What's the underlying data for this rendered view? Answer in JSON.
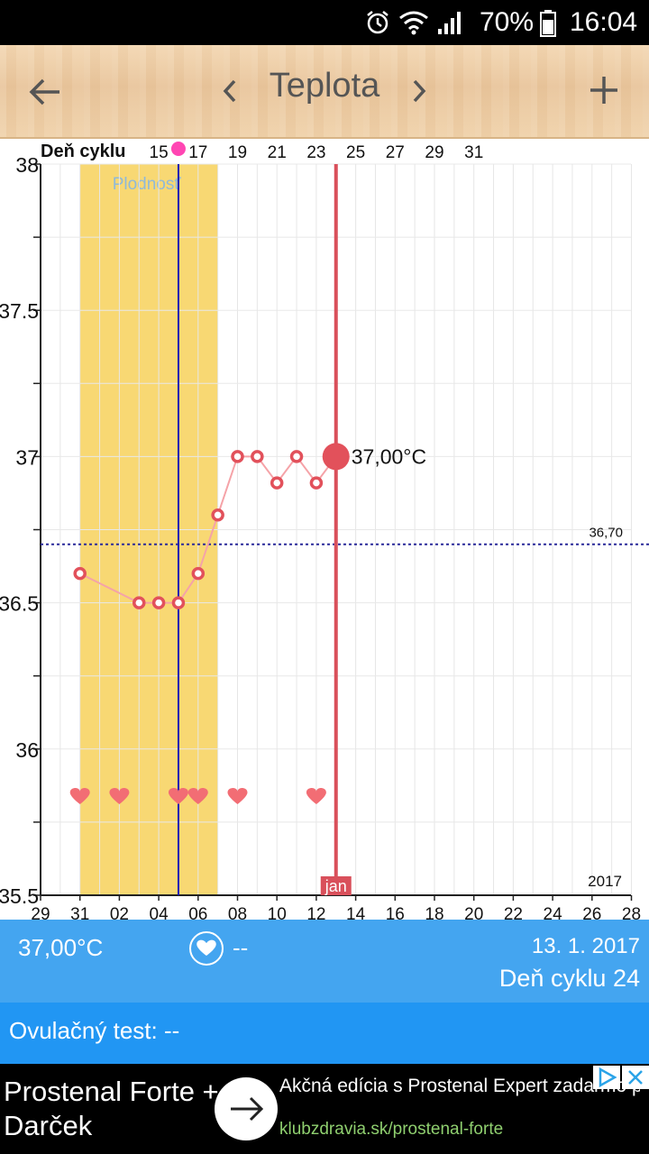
{
  "status_bar": {
    "icons": [
      "alarm-icon",
      "wifi-icon",
      "signal-icon",
      "battery-icon"
    ],
    "battery": "70%",
    "time": "16:04"
  },
  "toolbar": {
    "title": "Teplota",
    "back_icon": "arrow-left-icon",
    "prev_icon": "chevron-left-icon",
    "next_icon": "chevron-right-icon",
    "add_icon": "plus-icon"
  },
  "chart_data": {
    "type": "line",
    "cycle_axis_label": "Deň cyklu",
    "cycle_ticks": [
      "15",
      "17",
      "19",
      "21",
      "23",
      "25",
      "27",
      "29",
      "31"
    ],
    "date_ticks": [
      "29",
      "31",
      "02",
      "04",
      "06",
      "08",
      "10",
      "12",
      "14",
      "16",
      "18",
      "20",
      "22",
      "24",
      "26",
      "28"
    ],
    "y_ticks": [
      "38",
      "37.5",
      "37",
      "36.5",
      "36",
      "35.5"
    ],
    "ylim": [
      35.5,
      38
    ],
    "fertile_label": "Plodnosť",
    "fertile_window": [
      "2016-12-31",
      "2017-01-06"
    ],
    "ovulation_date": "2017-01-05",
    "coverline": {
      "value": 36.7,
      "label": "36,70"
    },
    "selected": {
      "date": "2017-01-13",
      "value": 37.0,
      "label": "37,00°C",
      "month_label": "jan"
    },
    "year_label": "2017",
    "series": [
      {
        "points": [
          {
            "x": "2016-12-31",
            "y": 36.6
          },
          {
            "x": "2017-01-03",
            "y": 36.5
          },
          {
            "x": "2017-01-04",
            "y": 36.5
          },
          {
            "x": "2017-01-05",
            "y": 36.5
          },
          {
            "x": "2017-01-06",
            "y": 36.6
          },
          {
            "x": "2017-01-07",
            "y": 36.8
          },
          {
            "x": "2017-01-08",
            "y": 37.0
          },
          {
            "x": "2017-01-09",
            "y": 37.0
          },
          {
            "x": "2017-01-10",
            "y": 36.91
          },
          {
            "x": "2017-01-11",
            "y": 37.0
          },
          {
            "x": "2017-01-12",
            "y": 36.91
          },
          {
            "x": "2017-01-13",
            "y": 37.0
          }
        ]
      }
    ],
    "intercourse_dates": [
      "2016-12-31",
      "2017-01-02",
      "2017-01-05",
      "2017-01-06",
      "2017-01-08",
      "2017-01-12"
    ],
    "colors": {
      "fertile": "#f8d873",
      "temp_line": "#f5a3a8",
      "marker": "#e2515b",
      "ovulation_line": "#1a1ab5",
      "selected_line": "#d9505b",
      "coverline": "#2a2a9a",
      "heart": "#f26d74"
    }
  },
  "info": {
    "temperature": "37,00°C",
    "heart_icon": "heart-icon",
    "heart_value": "--",
    "date": "13. 1. 2017",
    "cycle_day": "Deň cyklu 24"
  },
  "ovulation_test": {
    "label": "Ovulačný test: --"
  },
  "ad": {
    "title": "Prostenal Forte + Darček",
    "description": "Akčná edícia s Prostenal Expert zadarmo pre podporu erekcie skladom",
    "url": "klubzdravia.sk/prostenal-forte",
    "arrow_icon": "arrow-right-icon",
    "adchoices_icon": "adchoices-icon",
    "close_icon": "close-icon"
  }
}
